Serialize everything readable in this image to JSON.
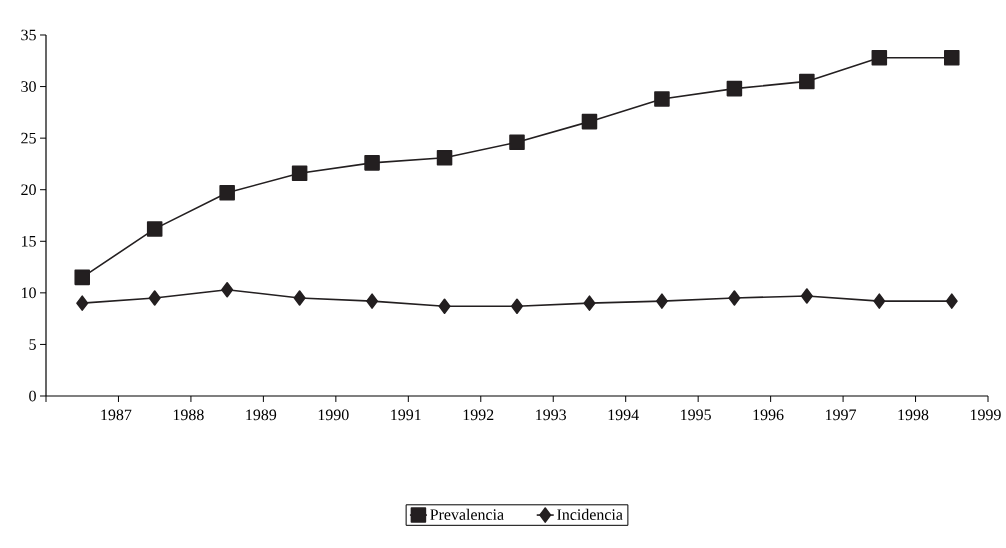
{
  "chart_data": {
    "type": "line",
    "x": [
      1986.5,
      1987.5,
      1988.5,
      1989.5,
      1990.5,
      1991.5,
      1992.5,
      1993.5,
      1994.5,
      1995.5,
      1996.5,
      1997.5,
      1998.5
    ],
    "series": [
      {
        "name": "Prevalencia",
        "color": "#231f20",
        "marker": "square",
        "values": [
          11.5,
          16.2,
          19.7,
          21.6,
          22.6,
          23.1,
          24.6,
          26.6,
          28.8,
          29.8,
          30.5,
          32.8,
          32.8
        ]
      },
      {
        "name": "Incidencia",
        "color": "#231f20",
        "marker": "diamond",
        "values": [
          9.0,
          9.5,
          10.3,
          9.5,
          9.2,
          8.7,
          8.7,
          9.0,
          9.2,
          9.5,
          9.7,
          9.2,
          9.2
        ]
      }
    ],
    "xlim": [
      1986,
      1999
    ],
    "xticks": [
      {
        "value": 1986,
        "label": null
      },
      1987,
      1988,
      1989,
      1990,
      1991,
      1992,
      1993,
      1994,
      1995,
      1996,
      1997,
      1998,
      1999
    ],
    "ylim": [
      0,
      35
    ],
    "yticks": [
      0,
      5,
      10,
      15,
      20,
      25,
      30,
      35
    ],
    "grid": false,
    "legend": "bottom",
    "line_style": "solid"
  }
}
